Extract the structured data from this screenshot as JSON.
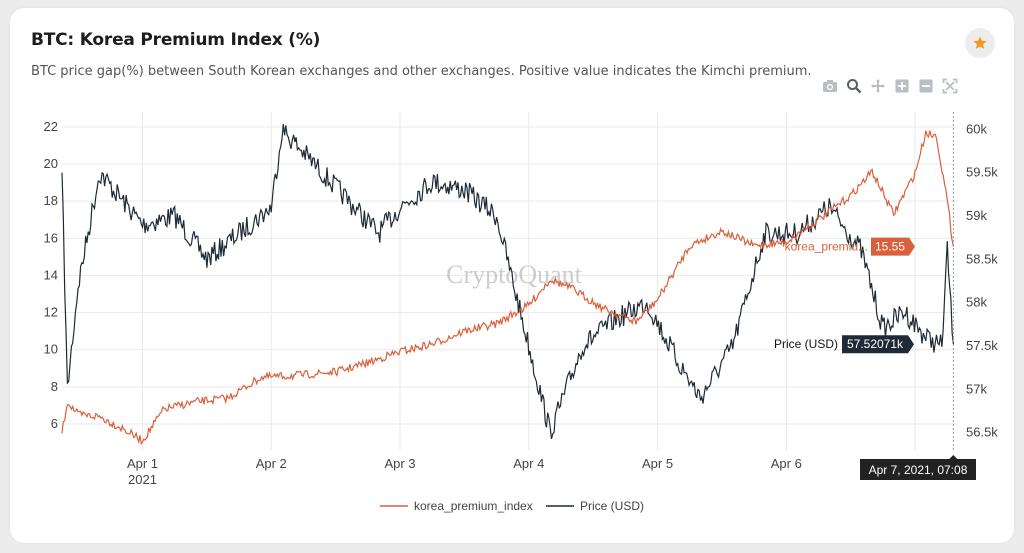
{
  "header": {
    "title": "BTC: Korea Premium Index (%)",
    "subtitle": "BTC price gap(%) between South Korean exchanges and other exchanges. Positive value indicates the Kimchi premium."
  },
  "toolbar": {
    "icons": [
      "camera-icon",
      "zoom-icon",
      "pan-icon",
      "zoom-in-icon",
      "zoom-out-icon",
      "autoscale-icon"
    ]
  },
  "watermark": "CryptoQuant",
  "colors": {
    "premium": "#d9603b",
    "price": "#1e2a35",
    "grid": "#e9e9e9",
    "star": "#f29a1c"
  },
  "hover": {
    "premium_label": "korea_premiu...",
    "premium_value": "15.55",
    "price_label": "Price (USD)",
    "price_value": "57.52071k",
    "x_label": "Apr 7, 2021, 07:08"
  },
  "legend": [
    {
      "name": "korea_premium_index",
      "color": "#d9603b"
    },
    {
      "name": "Price (USD)",
      "color": "#1e2a35"
    }
  ],
  "chart_data": {
    "type": "line",
    "x_ticks": [
      {
        "x": "2021-04-01",
        "label": "Apr 1",
        "sublabel": "2021"
      },
      {
        "x": "2021-04-02",
        "label": "Apr 2",
        "sublabel": ""
      },
      {
        "x": "2021-04-03",
        "label": "Apr 3",
        "sublabel": ""
      },
      {
        "x": "2021-04-04",
        "label": "Apr 4",
        "sublabel": ""
      },
      {
        "x": "2021-04-05",
        "label": "Apr 5",
        "sublabel": ""
      },
      {
        "x": "2021-04-06",
        "label": "Apr 6",
        "sublabel": ""
      },
      {
        "x": "2021-04-07",
        "label": "Apr 7",
        "sublabel": ""
      }
    ],
    "xlim": [
      "2021-03-31 09:00",
      "2021-04-07 08:00"
    ],
    "y_left": {
      "ylim": [
        4.6,
        22.8
      ],
      "ticks": [
        6,
        8,
        10,
        12,
        14,
        16,
        18,
        20,
        22
      ]
    },
    "y_right": {
      "ylim": [
        56300,
        60200
      ],
      "ticks": [
        {
          "v": 56500,
          "label": "56.5k"
        },
        {
          "v": 57000,
          "label": "57k"
        },
        {
          "v": 57500,
          "label": "57.5k"
        },
        {
          "v": 58000,
          "label": "58k"
        },
        {
          "v": 58500,
          "label": "58.5k"
        },
        {
          "v": 59000,
          "label": "59k"
        },
        {
          "v": 59500,
          "label": "59.5k"
        },
        {
          "v": 60000,
          "label": "60k"
        }
      ]
    },
    "series": [
      {
        "name": "korea_premium_index",
        "axis": "left",
        "points": [
          [
            "2021-03-31 09:00",
            5.5
          ],
          [
            "2021-03-31 10:00",
            7.2
          ],
          [
            "2021-03-31 12:00",
            6.5
          ],
          [
            "2021-03-31 16:00",
            6.4
          ],
          [
            "2021-03-31 20:00",
            5.8
          ],
          [
            "2021-04-01 00:00",
            5.1
          ],
          [
            "2021-04-01 04:00",
            6.8
          ],
          [
            "2021-04-01 10:00",
            7.2
          ],
          [
            "2021-04-01 16:00",
            7.4
          ],
          [
            "2021-04-01 22:00",
            8.5
          ],
          [
            "2021-04-02 04:00",
            8.6
          ],
          [
            "2021-04-02 12:00",
            8.8
          ],
          [
            "2021-04-02 18:00",
            9.3
          ],
          [
            "2021-04-03 00:00",
            9.9
          ],
          [
            "2021-04-03 06:00",
            10.3
          ],
          [
            "2021-04-03 12:00",
            11.0
          ],
          [
            "2021-04-03 18:00",
            11.4
          ],
          [
            "2021-04-04 00:00",
            12.4
          ],
          [
            "2021-04-04 04:00",
            13.8
          ],
          [
            "2021-04-04 08:00",
            13.3
          ],
          [
            "2021-04-04 14:00",
            12.2
          ],
          [
            "2021-04-04 20:00",
            11.5
          ],
          [
            "2021-04-05 00:00",
            12.7
          ],
          [
            "2021-04-05 06:00",
            15.6
          ],
          [
            "2021-04-05 12:00",
            16.4
          ],
          [
            "2021-04-05 18:00",
            15.6
          ],
          [
            "2021-04-06 00:00",
            15.8
          ],
          [
            "2021-04-06 06:00",
            17.0
          ],
          [
            "2021-04-06 12:00",
            18.3
          ],
          [
            "2021-04-06 16:00",
            19.6
          ],
          [
            "2021-04-06 20:00",
            17.3
          ],
          [
            "2021-04-07 00:00",
            19.5
          ],
          [
            "2021-04-07 02:00",
            21.7
          ],
          [
            "2021-04-07 04:00",
            21.5
          ],
          [
            "2021-04-07 06:00",
            18.0
          ],
          [
            "2021-04-07 07:08",
            15.55
          ]
        ]
      },
      {
        "name": "Price (USD)",
        "axis": "right",
        "points": [
          [
            "2021-03-31 09:00",
            59500
          ],
          [
            "2021-03-31 10:00",
            57000
          ],
          [
            "2021-03-31 12:00",
            58200
          ],
          [
            "2021-03-31 16:00",
            59500
          ],
          [
            "2021-03-31 20:00",
            59200
          ],
          [
            "2021-04-01 00:00",
            58900
          ],
          [
            "2021-04-01 06:00",
            59000
          ],
          [
            "2021-04-01 12:00",
            58500
          ],
          [
            "2021-04-01 18:00",
            58800
          ],
          [
            "2021-04-02 00:00",
            59100
          ],
          [
            "2021-04-02 02:00",
            60000
          ],
          [
            "2021-04-02 08:00",
            59600
          ],
          [
            "2021-04-02 14:00",
            59200
          ],
          [
            "2021-04-02 20:00",
            58800
          ],
          [
            "2021-04-03 00:00",
            59100
          ],
          [
            "2021-04-03 06:00",
            59400
          ],
          [
            "2021-04-03 12:00",
            59300
          ],
          [
            "2021-04-03 18:00",
            59000
          ],
          [
            "2021-04-04 00:00",
            57500
          ],
          [
            "2021-04-04 04:00",
            56500
          ],
          [
            "2021-04-04 10:00",
            57500
          ],
          [
            "2021-04-04 16:00",
            57800
          ],
          [
            "2021-04-04 22:00",
            58000
          ],
          [
            "2021-04-05 04:00",
            57300
          ],
          [
            "2021-04-05 08:00",
            56900
          ],
          [
            "2021-04-05 14:00",
            57500
          ],
          [
            "2021-04-05 20:00",
            58800
          ],
          [
            "2021-04-06 02:00",
            58800
          ],
          [
            "2021-04-06 08:00",
            59100
          ],
          [
            "2021-04-06 14:00",
            58600
          ],
          [
            "2021-04-06 18:00",
            57700
          ],
          [
            "2021-04-06 22:00",
            57900
          ],
          [
            "2021-04-07 02:00",
            57600
          ],
          [
            "2021-04-07 05:00",
            57500
          ],
          [
            "2021-04-07 06:00",
            58600
          ],
          [
            "2021-04-07 07:08",
            57520.71
          ]
        ]
      }
    ]
  }
}
